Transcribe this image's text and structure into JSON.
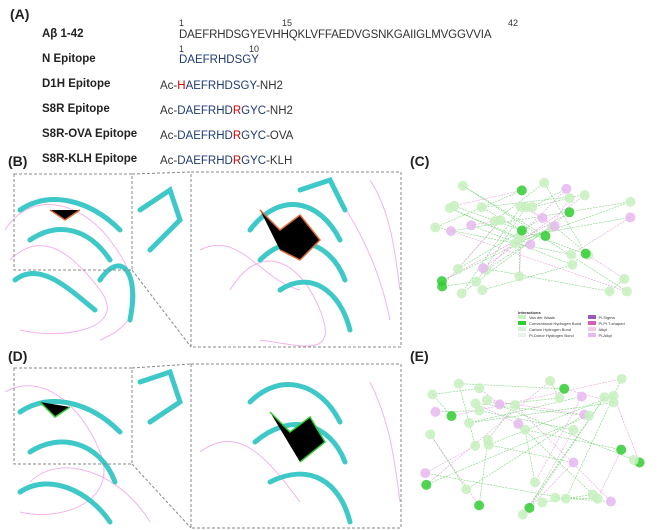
{
  "panels": {
    "a": "(A)",
    "b": "(B)",
    "c": "(C)",
    "d": "(D)",
    "e": "(E)"
  },
  "sequences": [
    {
      "label": "Aβ 1-42",
      "prefix": "",
      "main": "DAEFRHDSGYEVHHQKLVFFAEDVGSNKGAIIGLMVGGVVIA",
      "mut": "",
      "rest": "",
      "suffix": "",
      "numbers": [
        "1",
        "15",
        "42"
      ]
    },
    {
      "label": "N Epitope",
      "prefix": "",
      "main": "DAEFRHDSGY",
      "mut": "",
      "rest": "",
      "suffix": "",
      "numbers": [
        "1",
        "10"
      ]
    },
    {
      "label": "D1H Epitope",
      "prefix": "Ac-",
      "mut": "H",
      "main": "AEFRHDSGY",
      "rest": "",
      "suffix": "-NH2"
    },
    {
      "label": "S8R Epitope",
      "prefix": "Ac-",
      "main": "DAEFRHD",
      "mut": "R",
      "rest": "GYC",
      "suffix": "-NH2"
    },
    {
      "label": "S8R-OVA Epitope",
      "prefix": "Ac-",
      "main": "DAEFRHD",
      "mut": "R",
      "rest": "GYC",
      "suffix": "-OVA"
    },
    {
      "label": "S8R-KLH Epitope",
      "prefix": "Ac-",
      "main": "DAEFRHD",
      "mut": "R",
      "rest": "GYC",
      "suffix": "-KLH"
    }
  ],
  "legend": {
    "title": "Interactions",
    "items": [
      {
        "label": "Van der Waals",
        "color": "#c8f0c0"
      },
      {
        "label": "Conventional Hydrogen Bond",
        "color": "#33cc33"
      },
      {
        "label": "Carbon Hydrogen Bond",
        "color": "#d8f0d8"
      },
      {
        "label": "Pi-Donor Hydrogen Bond",
        "color": "#e8f4e8"
      },
      {
        "label": "Pi-Sigma",
        "color": "#9b59b6"
      },
      {
        "label": "Pi-Pi T-shaped",
        "color": "#d35fb7"
      },
      {
        "label": "Alkyl",
        "color": "#f0c8e8"
      },
      {
        "label": "Pi-Alkyl",
        "color": "#e6b8f0"
      }
    ]
  },
  "colors": {
    "protein": "#3ec8c8",
    "antigen": "#f0a0e8",
    "mutation": "#cc0000",
    "epitope": "#1f3b73"
  }
}
